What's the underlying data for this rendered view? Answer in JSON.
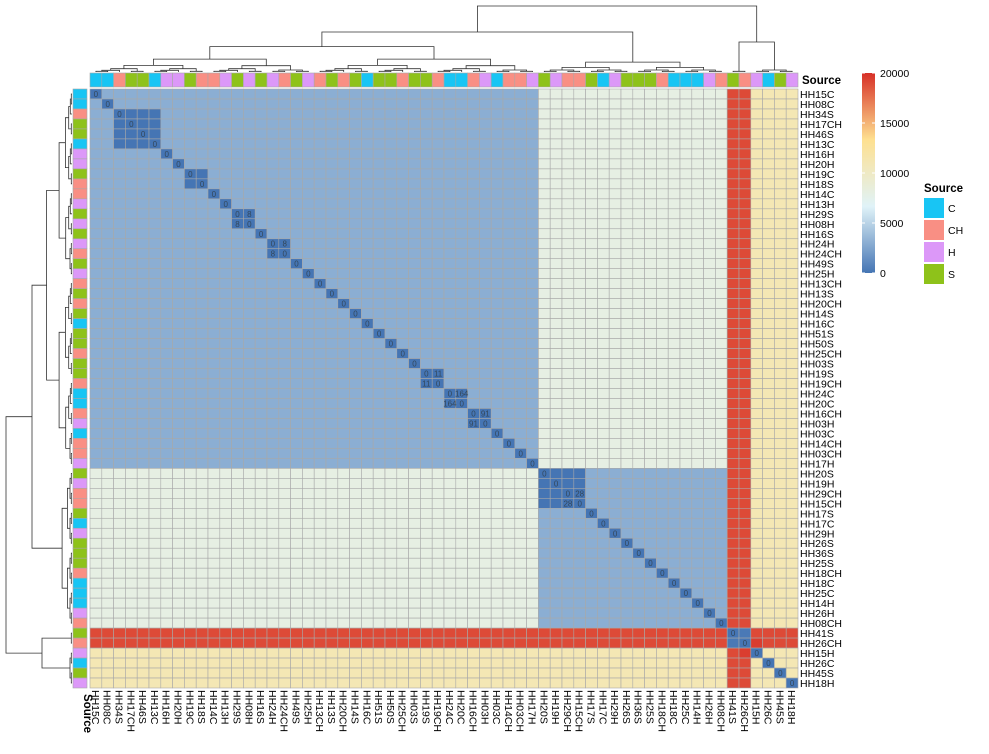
{
  "chart_data": {
    "type": "heatmap",
    "labels": [
      "HH15C",
      "HH08C",
      "HH34S",
      "HH17CH",
      "HH46S",
      "HH13C",
      "HH16H",
      "HH20H",
      "HH19C",
      "HH18S",
      "HH14C",
      "HH13H",
      "HH29S",
      "HH08H",
      "HH16S",
      "HH24H",
      "HH24CH",
      "HH49S",
      "HH25H",
      "HH13CH",
      "HH13S",
      "HH20CH",
      "HH14S",
      "HH16C",
      "HH51S",
      "HH50S",
      "HH25CH",
      "HH03S",
      "HH19S",
      "HH19CH",
      "HH24C",
      "HH20C",
      "HH16CH",
      "HH03H",
      "HH03C",
      "HH14CH",
      "HH03CH",
      "HH17H",
      "HH20S",
      "HH19H",
      "HH29CH",
      "HH15CH",
      "HH17S",
      "HH17C",
      "HH29H",
      "HH26S",
      "HH36S",
      "HH25S",
      "HH18CH",
      "HH18C",
      "HH25C",
      "HH14H",
      "HH26H",
      "HH08CH",
      "HH41S",
      "HH26CH",
      "HH15H",
      "HH26C",
      "HH45S",
      "HH18H"
    ],
    "sources": [
      "C",
      "C",
      "CH",
      "S",
      "S",
      "C",
      "H",
      "H",
      "S",
      "CH",
      "CH",
      "H",
      "S",
      "H",
      "S",
      "H",
      "CH",
      "S",
      "H",
      "CH",
      "S",
      "CH",
      "S",
      "C",
      "S",
      "S",
      "CH",
      "S",
      "S",
      "CH",
      "C",
      "C",
      "CH",
      "H",
      "C",
      "CH",
      "CH",
      "H",
      "S",
      "H",
      "CH",
      "CH",
      "S",
      "C",
      "H",
      "S",
      "S",
      "S",
      "CH",
      "C",
      "C",
      "C",
      "H",
      "CH",
      "S",
      "CH",
      "H",
      "C",
      "S",
      "H"
    ],
    "source_colors": {
      "C": "#18c5f4",
      "CH": "#f98f84",
      "H": "#dc98f8",
      "S": "#8ec21a"
    },
    "clusters": [
      {
        "start": 0,
        "end": 37,
        "value": 3000,
        "diag": 0,
        "pairs": [
          [
            2,
            5
          ],
          [
            8,
            9
          ],
          [
            12,
            13
          ],
          [
            15,
            16
          ],
          [
            28,
            29
          ],
          [
            30,
            31
          ],
          [
            32,
            33
          ]
        ],
        "pair_labels": [
          "0",
          "0",
          "0",
          "0",
          "0",
          "0",
          "0"
        ]
      },
      {
        "start": 38,
        "end": 54,
        "value": 3000,
        "diag": 0,
        "pairs": [
          [
            38,
            41
          ]
        ],
        "pair_labels": [
          "0"
        ]
      }
    ],
    "between_values": {
      "A_B": 8000,
      "A_C": 19000,
      "B_C": 19000,
      "A_D": 11000,
      "B_D": 11000,
      "C_D": 11000,
      "D_D": 11000,
      "C_C": 0
    },
    "value_labels": [
      {
        "r": 0,
        "c": 0,
        "t": "0"
      },
      {
        "r": 1,
        "c": 1,
        "t": "0"
      },
      {
        "r": 2,
        "c": 2,
        "t": "0"
      },
      {
        "r": 3,
        "c": 3,
        "t": "0"
      },
      {
        "r": 4,
        "c": 4,
        "t": "0"
      },
      {
        "r": 5,
        "c": 5,
        "t": "0"
      },
      {
        "r": 6,
        "c": 6,
        "t": "0"
      },
      {
        "r": 7,
        "c": 7,
        "t": "0"
      },
      {
        "r": 8,
        "c": 8,
        "t": "0"
      },
      {
        "r": 9,
        "c": 9,
        "t": "0"
      },
      {
        "r": 10,
        "c": 10,
        "t": "0"
      },
      {
        "r": 11,
        "c": 11,
        "t": "0"
      },
      {
        "r": 12,
        "c": 12,
        "t": "0"
      },
      {
        "r": 12,
        "c": 13,
        "t": "8"
      },
      {
        "r": 13,
        "c": 12,
        "t": "8"
      },
      {
        "r": 13,
        "c": 13,
        "t": "0"
      },
      {
        "r": 14,
        "c": 14,
        "t": "0"
      },
      {
        "r": 15,
        "c": 15,
        "t": "0"
      },
      {
        "r": 15,
        "c": 16,
        "t": "8"
      },
      {
        "r": 16,
        "c": 15,
        "t": "8"
      },
      {
        "r": 16,
        "c": 16,
        "t": "0"
      },
      {
        "r": 17,
        "c": 17,
        "t": "0"
      },
      {
        "r": 18,
        "c": 18,
        "t": "0"
      },
      {
        "r": 19,
        "c": 19,
        "t": "0"
      },
      {
        "r": 20,
        "c": 20,
        "t": "0"
      },
      {
        "r": 21,
        "c": 21,
        "t": "0"
      },
      {
        "r": 22,
        "c": 22,
        "t": "0"
      },
      {
        "r": 23,
        "c": 23,
        "t": "0"
      },
      {
        "r": 24,
        "c": 24,
        "t": "0"
      },
      {
        "r": 25,
        "c": 25,
        "t": "0"
      },
      {
        "r": 26,
        "c": 26,
        "t": "0"
      },
      {
        "r": 27,
        "c": 27,
        "t": "0"
      },
      {
        "r": 28,
        "c": 28,
        "t": "0"
      },
      {
        "r": 28,
        "c": 29,
        "t": "11"
      },
      {
        "r": 29,
        "c": 28,
        "t": "11"
      },
      {
        "r": 29,
        "c": 29,
        "t": "0"
      },
      {
        "r": 30,
        "c": 30,
        "t": "0"
      },
      {
        "r": 30,
        "c": 31,
        "t": "164"
      },
      {
        "r": 31,
        "c": 30,
        "t": "164"
      },
      {
        "r": 31,
        "c": 31,
        "t": "0"
      },
      {
        "r": 32,
        "c": 32,
        "t": "0"
      },
      {
        "r": 32,
        "c": 33,
        "t": "91"
      },
      {
        "r": 33,
        "c": 32,
        "t": "91"
      },
      {
        "r": 33,
        "c": 33,
        "t": "0"
      },
      {
        "r": 34,
        "c": 34,
        "t": "0"
      },
      {
        "r": 35,
        "c": 35,
        "t": "0"
      },
      {
        "r": 36,
        "c": 36,
        "t": "0"
      },
      {
        "r": 37,
        "c": 37,
        "t": "0"
      },
      {
        "r": 38,
        "c": 38,
        "t": "0"
      },
      {
        "r": 39,
        "c": 39,
        "t": "0"
      },
      {
        "r": 40,
        "c": 40,
        "t": "0"
      },
      {
        "r": 40,
        "c": 41,
        "t": "28"
      },
      {
        "r": 41,
        "c": 40,
        "t": "28"
      },
      {
        "r": 41,
        "c": 41,
        "t": "0"
      },
      {
        "r": 42,
        "c": 42,
        "t": "0"
      },
      {
        "r": 43,
        "c": 43,
        "t": "0"
      },
      {
        "r": 44,
        "c": 44,
        "t": "0"
      },
      {
        "r": 45,
        "c": 45,
        "t": "0"
      },
      {
        "r": 46,
        "c": 46,
        "t": "0"
      },
      {
        "r": 47,
        "c": 47,
        "t": "0"
      },
      {
        "r": 48,
        "c": 48,
        "t": "0"
      },
      {
        "r": 49,
        "c": 49,
        "t": "0"
      },
      {
        "r": 50,
        "c": 50,
        "t": "0"
      },
      {
        "r": 51,
        "c": 51,
        "t": "0"
      },
      {
        "r": 52,
        "c": 52,
        "t": "0"
      },
      {
        "r": 53,
        "c": 53,
        "t": "0"
      },
      {
        "r": 54,
        "c": 54,
        "t": "0"
      },
      {
        "r": 55,
        "c": 55,
        "t": "0"
      },
      {
        "r": 56,
        "c": 56,
        "t": "0"
      },
      {
        "r": 57,
        "c": 57,
        "t": "0"
      },
      {
        "r": 58,
        "c": 58,
        "t": "0"
      },
      {
        "r": 59,
        "c": 59,
        "t": "0"
      }
    ],
    "color_scale": {
      "min": 0,
      "max": 20000,
      "ticks": [
        0,
        5000,
        10000,
        15000,
        20000
      ],
      "stops": [
        "#4575b4",
        "#e0f3f8",
        "#fee090",
        "#d73027"
      ]
    },
    "annotation_title": "Source",
    "legend_title": "Source",
    "legend_items": [
      "C",
      "CH",
      "H",
      "S"
    ],
    "grid": true
  }
}
